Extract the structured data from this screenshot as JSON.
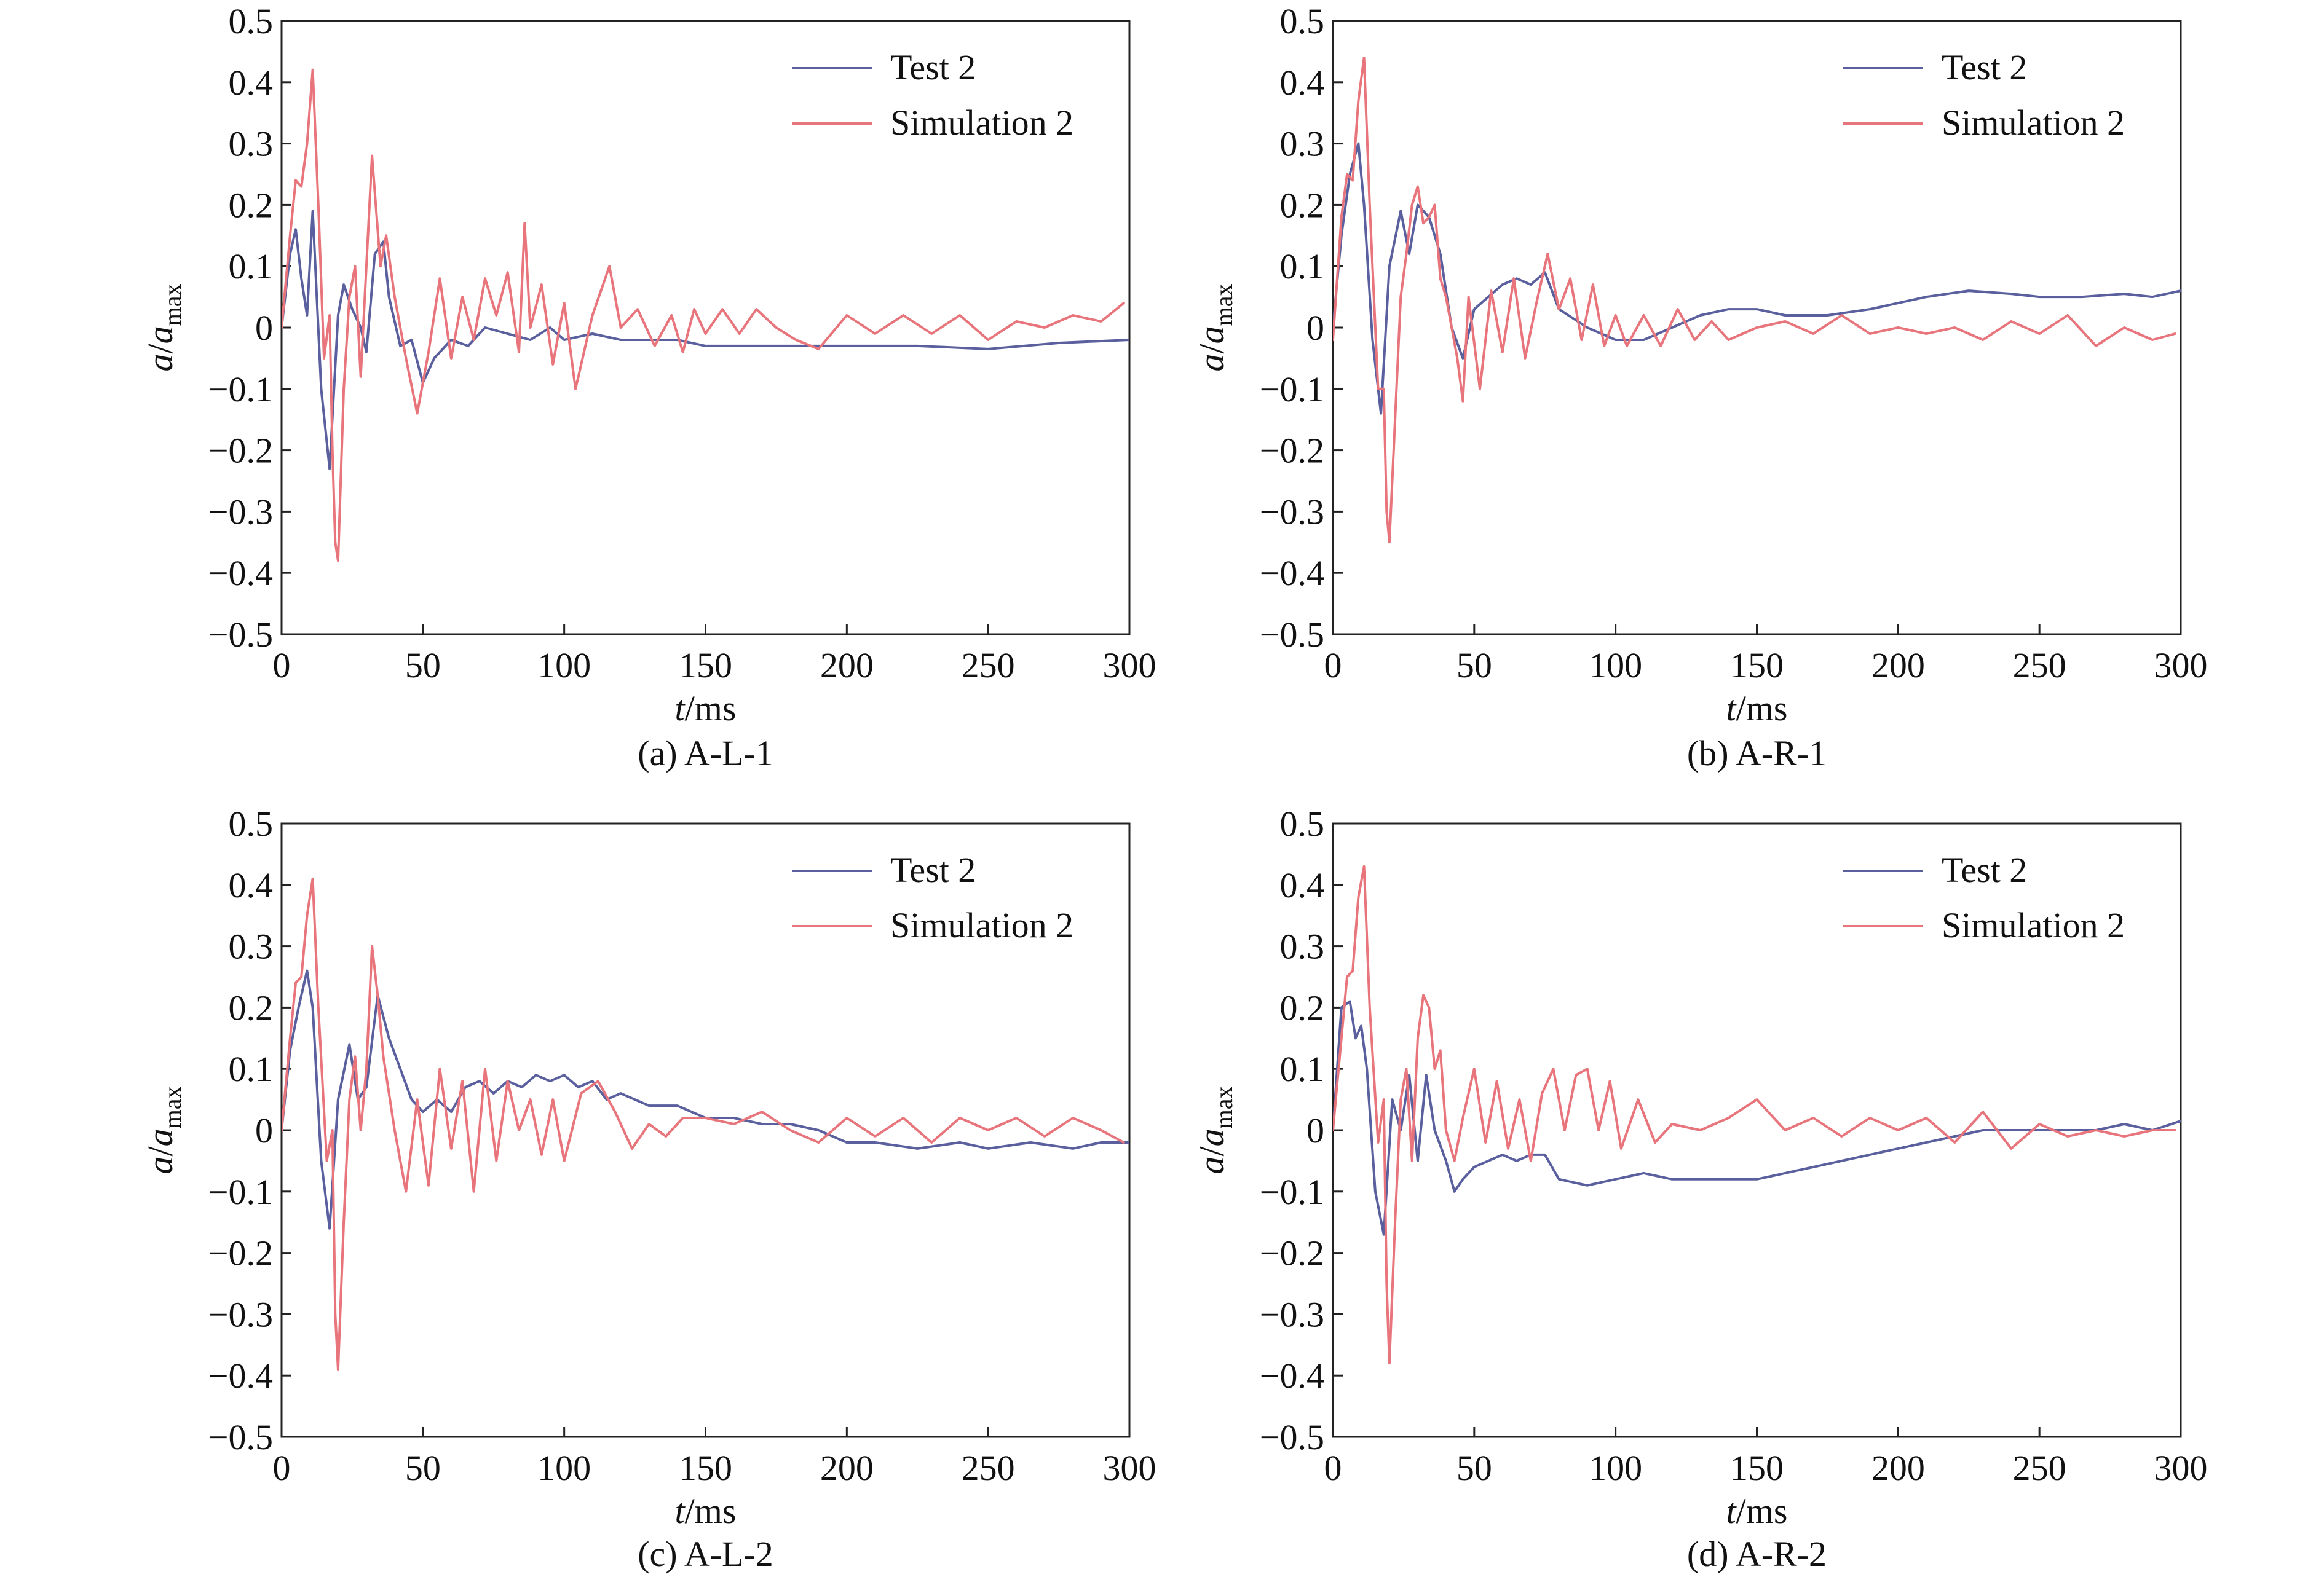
{
  "chart_data": [
    {
      "type": "line",
      "caption": "(a) A-L-1",
      "xlabel_italic": "t",
      "xlabel_rest": "/ms",
      "ylabel_a": "a",
      "ylabel_slash": "/",
      "ylabel_a2": "a",
      "ylabel_sub": "max",
      "xlim": [
        0,
        300
      ],
      "ylim": [
        -0.5,
        0.5
      ],
      "xticks": [
        "0",
        "50",
        "100",
        "150",
        "200",
        "250",
        "300"
      ],
      "yticks": [
        "0.5",
        "0.4",
        "0.3",
        "0.2",
        "0.1",
        "0",
        "−0.1",
        "−0.2",
        "−0.3",
        "−0.4",
        "−0.5"
      ],
      "legend_position": "top-right",
      "series": [
        {
          "name": "Test 2",
          "color": "#5a5f9e",
          "x": [
            0,
            3,
            5,
            7,
            9,
            11,
            14,
            17,
            20,
            22,
            25,
            28,
            30,
            33,
            36,
            38,
            42,
            46,
            50,
            54,
            60,
            66,
            72,
            80,
            88,
            95,
            100,
            110,
            120,
            130,
            140,
            150,
            175,
            200,
            225,
            250,
            275,
            300
          ],
          "y": [
            0,
            0.12,
            0.16,
            0.08,
            0.02,
            0.19,
            -0.1,
            -0.23,
            0.02,
            0.07,
            0.03,
            0.0,
            -0.04,
            0.12,
            0.14,
            0.05,
            -0.03,
            -0.02,
            -0.09,
            -0.05,
            -0.02,
            -0.03,
            0.0,
            -0.01,
            -0.02,
            0.0,
            -0.02,
            -0.01,
            -0.02,
            -0.02,
            -0.02,
            -0.03,
            -0.03,
            -0.03,
            -0.03,
            -0.035,
            -0.025,
            -0.02
          ]
        },
        {
          "name": "Simulation 2",
          "color": "#e8747c",
          "x": [
            0,
            3,
            5,
            7,
            9,
            11,
            13,
            15,
            17,
            18,
            19,
            20,
            22,
            24,
            26,
            28,
            30,
            32,
            33,
            35,
            37,
            40,
            44,
            48,
            52,
            56,
            60,
            64,
            68,
            72,
            76,
            80,
            84,
            86,
            88,
            92,
            96,
            100,
            104,
            110,
            116,
            120,
            126,
            132,
            138,
            142,
            146,
            150,
            156,
            162,
            168,
            175,
            182,
            190,
            200,
            210,
            220,
            230,
            240,
            250,
            260,
            270,
            280,
            290,
            298
          ],
          "y": [
            0,
            0.15,
            0.24,
            0.23,
            0.3,
            0.42,
            0.2,
            -0.05,
            0.02,
            -0.2,
            -0.35,
            -0.38,
            -0.1,
            0.05,
            0.1,
            -0.08,
            0.1,
            0.28,
            0.22,
            0.1,
            0.15,
            0.05,
            -0.05,
            -0.14,
            -0.04,
            0.08,
            -0.05,
            0.05,
            -0.02,
            0.08,
            0.02,
            0.09,
            -0.04,
            0.17,
            0.0,
            0.07,
            -0.06,
            0.04,
            -0.1,
            0.02,
            0.1,
            0.0,
            0.03,
            -0.03,
            0.02,
            -0.04,
            0.03,
            -0.01,
            0.03,
            -0.01,
            0.03,
            0.0,
            -0.02,
            -0.035,
            0.02,
            -0.01,
            0.02,
            -0.01,
            0.02,
            -0.02,
            0.01,
            0.0,
            0.02,
            0.01,
            0.04
          ]
        }
      ]
    },
    {
      "type": "line",
      "caption": "(b) A-R-1",
      "xlabel_italic": "t",
      "xlabel_rest": "/ms",
      "ylabel_a": "a",
      "ylabel_slash": "/",
      "ylabel_a2": "a",
      "ylabel_sub": "max",
      "xlim": [
        0,
        300
      ],
      "ylim": [
        -0.5,
        0.5
      ],
      "xticks": [
        "0",
        "50",
        "100",
        "150",
        "200",
        "250",
        "300"
      ],
      "yticks": [
        "0.5",
        "0.4",
        "0.3",
        "0.2",
        "0.1",
        "0",
        "−0.1",
        "−0.2",
        "−0.3",
        "−0.4",
        "−0.5"
      ],
      "legend_position": "top-right",
      "series": [
        {
          "name": "Test 2",
          "color": "#5a5f9e",
          "x": [
            0,
            3,
            6,
            9,
            11,
            14,
            17,
            20,
            24,
            27,
            30,
            34,
            38,
            42,
            46,
            50,
            55,
            60,
            65,
            70,
            75,
            80,
            90,
            100,
            110,
            120,
            130,
            140,
            150,
            160,
            175,
            190,
            200,
            210,
            225,
            240,
            250,
            265,
            280,
            290,
            300
          ],
          "y": [
            0,
            0.15,
            0.25,
            0.3,
            0.2,
            -0.02,
            -0.14,
            0.1,
            0.19,
            0.12,
            0.2,
            0.18,
            0.12,
            0.0,
            -0.05,
            0.03,
            0.05,
            0.07,
            0.08,
            0.07,
            0.09,
            0.03,
            0.0,
            -0.02,
            -0.02,
            0.0,
            0.02,
            0.03,
            0.03,
            0.02,
            0.02,
            0.03,
            0.04,
            0.05,
            0.06,
            0.055,
            0.05,
            0.05,
            0.055,
            0.05,
            0.06
          ]
        },
        {
          "name": "Simulation 2",
          "color": "#e8747c",
          "x": [
            0,
            3,
            5,
            7,
            9,
            11,
            13,
            16,
            18,
            19,
            20,
            22,
            24,
            26,
            28,
            30,
            32,
            34,
            36,
            38,
            40,
            44,
            46,
            48,
            52,
            56,
            60,
            64,
            68,
            72,
            76,
            80,
            84,
            88,
            92,
            96,
            100,
            104,
            110,
            116,
            122,
            128,
            134,
            140,
            150,
            160,
            170,
            180,
            190,
            200,
            210,
            220,
            230,
            240,
            250,
            260,
            270,
            280,
            290,
            298
          ],
          "y": [
            -0.02,
            0.18,
            0.25,
            0.24,
            0.37,
            0.44,
            0.2,
            -0.1,
            -0.1,
            -0.3,
            -0.35,
            -0.15,
            0.05,
            0.12,
            0.2,
            0.23,
            0.17,
            0.18,
            0.2,
            0.08,
            0.05,
            -0.05,
            -0.12,
            0.05,
            -0.1,
            0.06,
            -0.04,
            0.08,
            -0.05,
            0.04,
            0.12,
            0.03,
            0.08,
            -0.02,
            0.07,
            -0.03,
            0.02,
            -0.03,
            0.02,
            -0.03,
            0.03,
            -0.02,
            0.01,
            -0.02,
            0.0,
            0.01,
            -0.01,
            0.02,
            -0.01,
            0.0,
            -0.01,
            0.0,
            -0.02,
            0.01,
            -0.01,
            0.02,
            -0.03,
            0.0,
            -0.02,
            -0.01
          ]
        }
      ]
    },
    {
      "type": "line",
      "caption": "(c) A-L-2",
      "xlabel_italic": "t",
      "xlabel_rest": "/ms",
      "ylabel_a": "a",
      "ylabel_slash": "/",
      "ylabel_a2": "a",
      "ylabel_sub": "max",
      "xlim": [
        0,
        300
      ],
      "ylim": [
        -0.5,
        0.5
      ],
      "xticks": [
        "0",
        "50",
        "100",
        "150",
        "200",
        "250",
        "300"
      ],
      "yticks": [
        "0.5",
        "0.4",
        "0.3",
        "0.2",
        "0.1",
        "0",
        "−0.1",
        "−0.2",
        "−0.3",
        "−0.4",
        "−0.5"
      ],
      "legend_position": "top-right",
      "series": [
        {
          "name": "Test 2",
          "color": "#5a5f9e",
          "x": [
            0,
            3,
            6,
            9,
            11,
            14,
            17,
            20,
            24,
            27,
            30,
            34,
            38,
            42,
            46,
            50,
            55,
            60,
            65,
            70,
            75,
            80,
            85,
            90,
            95,
            100,
            105,
            110,
            115,
            120,
            130,
            140,
            150,
            160,
            170,
            180,
            190,
            200,
            210,
            225,
            240,
            250,
            265,
            280,
            290,
            300
          ],
          "y": [
            0,
            0.13,
            0.2,
            0.26,
            0.2,
            -0.05,
            -0.16,
            0.05,
            0.14,
            0.05,
            0.07,
            0.22,
            0.15,
            0.1,
            0.05,
            0.03,
            0.05,
            0.03,
            0.07,
            0.08,
            0.06,
            0.08,
            0.07,
            0.09,
            0.08,
            0.09,
            0.07,
            0.08,
            0.05,
            0.06,
            0.04,
            0.04,
            0.02,
            0.02,
            0.01,
            0.01,
            0.0,
            -0.02,
            -0.02,
            -0.03,
            -0.02,
            -0.03,
            -0.02,
            -0.03,
            -0.02,
            -0.02
          ]
        },
        {
          "name": "Simulation 2",
          "color": "#e8747c",
          "x": [
            0,
            3,
            5,
            7,
            9,
            11,
            13,
            16,
            18,
            19,
            20,
            22,
            24,
            26,
            28,
            30,
            32,
            34,
            36,
            40,
            44,
            48,
            52,
            56,
            60,
            64,
            68,
            72,
            76,
            80,
            84,
            88,
            92,
            96,
            100,
            106,
            112,
            118,
            124,
            130,
            136,
            142,
            150,
            160,
            170,
            180,
            190,
            200,
            210,
            220,
            230,
            240,
            250,
            260,
            270,
            280,
            290,
            298
          ],
          "y": [
            0,
            0.15,
            0.24,
            0.25,
            0.35,
            0.41,
            0.2,
            -0.05,
            0.0,
            -0.3,
            -0.39,
            -0.15,
            0.05,
            0.12,
            0.0,
            0.1,
            0.3,
            0.22,
            0.12,
            0.0,
            -0.1,
            0.05,
            -0.09,
            0.1,
            -0.03,
            0.08,
            -0.1,
            0.1,
            -0.05,
            0.08,
            0.0,
            0.05,
            -0.04,
            0.05,
            -0.05,
            0.06,
            0.08,
            0.03,
            -0.03,
            0.01,
            -0.01,
            0.02,
            0.02,
            0.01,
            0.03,
            0.0,
            -0.02,
            0.02,
            -0.01,
            0.02,
            -0.02,
            0.02,
            0.0,
            0.02,
            -0.01,
            0.02,
            0.0,
            -0.02
          ]
        }
      ]
    },
    {
      "type": "line",
      "caption": "(d) A-R-2",
      "xlabel_italic": "t",
      "xlabel_rest": "/ms",
      "ylabel_a": "a",
      "ylabel_slash": "/",
      "ylabel_a2": "a",
      "ylabel_sub": "max",
      "xlim": [
        0,
        300
      ],
      "ylim": [
        -0.5,
        0.5
      ],
      "xticks": [
        "0",
        "50",
        "100",
        "150",
        "200",
        "250",
        "300"
      ],
      "yticks": [
        "0.5",
        "0.4",
        "0.3",
        "0.2",
        "0.1",
        "0",
        "−0.1",
        "−0.2",
        "−0.3",
        "−0.4",
        "−0.5"
      ],
      "legend_position": "top-right",
      "series": [
        {
          "name": "Test 2",
          "color": "#5a5f9e",
          "x": [
            0,
            3,
            6,
            8,
            10,
            12,
            15,
            18,
            21,
            24,
            27,
            30,
            33,
            36,
            40,
            43,
            46,
            50,
            55,
            60,
            65,
            70,
            75,
            80,
            90,
            100,
            110,
            120,
            130,
            140,
            150,
            160,
            170,
            180,
            190,
            200,
            210,
            220,
            230,
            240,
            250,
            260,
            270,
            280,
            290,
            300
          ],
          "y": [
            0,
            0.2,
            0.21,
            0.15,
            0.17,
            0.1,
            -0.1,
            -0.17,
            0.05,
            0.0,
            0.09,
            -0.05,
            0.09,
            0.0,
            -0.05,
            -0.1,
            -0.08,
            -0.06,
            -0.05,
            -0.04,
            -0.05,
            -0.04,
            -0.04,
            -0.08,
            -0.09,
            -0.08,
            -0.07,
            -0.08,
            -0.08,
            -0.08,
            -0.08,
            -0.07,
            -0.06,
            -0.05,
            -0.04,
            -0.03,
            -0.02,
            -0.01,
            0.0,
            0.0,
            0.0,
            0.0,
            0.0,
            0.01,
            0.0,
            0.015
          ]
        },
        {
          "name": "Simulation 2",
          "color": "#e8747c",
          "x": [
            0,
            3,
            5,
            7,
            9,
            11,
            13,
            16,
            18,
            19,
            20,
            22,
            24,
            26,
            28,
            30,
            32,
            34,
            36,
            38,
            40,
            43,
            46,
            50,
            54,
            58,
            62,
            66,
            70,
            74,
            78,
            82,
            86,
            90,
            94,
            98,
            102,
            108,
            114,
            120,
            130,
            140,
            150,
            160,
            170,
            180,
            190,
            200,
            210,
            220,
            230,
            240,
            250,
            260,
            270,
            280,
            290,
            298
          ],
          "y": [
            0,
            0.15,
            0.25,
            0.26,
            0.38,
            0.43,
            0.2,
            -0.02,
            0.05,
            -0.25,
            -0.38,
            -0.15,
            0.05,
            0.1,
            -0.05,
            0.15,
            0.22,
            0.2,
            0.1,
            0.13,
            0.0,
            -0.05,
            0.02,
            0.1,
            -0.02,
            0.08,
            -0.03,
            0.05,
            -0.05,
            0.06,
            0.1,
            0.0,
            0.09,
            0.1,
            0.0,
            0.08,
            -0.03,
            0.05,
            -0.02,
            0.01,
            0.0,
            0.02,
            0.05,
            0.0,
            0.02,
            -0.01,
            0.02,
            0.0,
            0.02,
            -0.02,
            0.03,
            -0.03,
            0.01,
            -0.01,
            0.0,
            -0.01,
            0.0,
            0.0
          ]
        }
      ]
    }
  ]
}
